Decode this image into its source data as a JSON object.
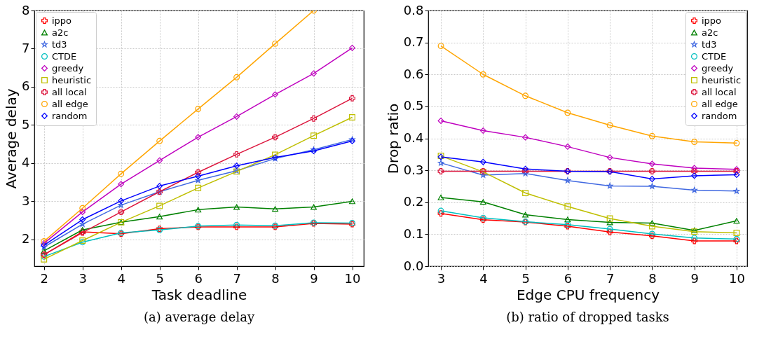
{
  "chart_data": [
    {
      "type": "line",
      "title": "(a) average delay",
      "xlabel": "Task deadline",
      "ylabel": "Average delay",
      "x": [
        2,
        3,
        4,
        5,
        6,
        7,
        8,
        9,
        10
      ],
      "xlim": [
        1.75,
        10.3
      ],
      "xticks": [
        2,
        3,
        4,
        5,
        6,
        7,
        8,
        9,
        10
      ],
      "ylim": [
        1.3,
        8
      ],
      "yticks": [
        2,
        3,
        4,
        5,
        6,
        7,
        8
      ],
      "grid": true,
      "legend": "top left",
      "series": [
        {
          "name": "ippo",
          "color": "#ff0000",
          "marker": "cross",
          "values": [
            1.6,
            2.2,
            2.15,
            2.28,
            2.33,
            2.33,
            2.33,
            2.42,
            2.4
          ]
        },
        {
          "name": "a2c",
          "color": "#008000",
          "marker": "triangle",
          "values": [
            1.7,
            2.25,
            2.45,
            2.6,
            2.78,
            2.85,
            2.8,
            2.85,
            3.0
          ]
        },
        {
          "name": "td3",
          "color": "#4169e1",
          "marker": "star",
          "values": [
            1.8,
            2.4,
            2.9,
            3.25,
            3.55,
            3.8,
            4.12,
            4.35,
            4.62
          ]
        },
        {
          "name": "CTDE",
          "color": "#00bfbf",
          "marker": "circle",
          "values": [
            1.55,
            1.93,
            2.17,
            2.25,
            2.35,
            2.38,
            2.36,
            2.44,
            2.43
          ]
        },
        {
          "name": "greedy",
          "color": "#bf00bf",
          "marker": "diamond",
          "values": [
            1.9,
            2.72,
            3.45,
            4.07,
            4.68,
            5.22,
            5.8,
            6.35,
            7.02
          ]
        },
        {
          "name": "heuristic",
          "color": "#bfbf00",
          "marker": "square",
          "values": [
            1.48,
            1.97,
            2.45,
            2.88,
            3.35,
            3.78,
            4.22,
            4.72,
            5.2
          ]
        },
        {
          "name": "all local",
          "color": "#dc143c",
          "marker": "cross",
          "values": [
            1.6,
            2.18,
            2.72,
            3.25,
            3.76,
            4.23,
            4.68,
            5.17,
            5.7
          ]
        },
        {
          "name": "all edge",
          "color": "#ffa500",
          "marker": "circle",
          "values": [
            1.95,
            2.82,
            3.72,
            4.58,
            5.42,
            6.25,
            7.13,
            8.0,
            null
          ]
        },
        {
          "name": "random",
          "color": "#0000ff",
          "marker": "diamond",
          "values": [
            1.85,
            2.52,
            3.01,
            3.4,
            3.66,
            3.93,
            4.15,
            4.32,
            4.58
          ]
        }
      ]
    },
    {
      "type": "line",
      "title": "(b) ratio of dropped tasks",
      "xlabel": "Edge CPU frequency",
      "ylabel": "Drop ratio",
      "x": [
        3,
        4,
        5,
        6,
        7,
        8,
        9,
        10
      ],
      "xlim": [
        2.7,
        10.25
      ],
      "xticks": [
        3,
        4,
        5,
        6,
        7,
        8,
        9,
        10
      ],
      "ylim": [
        0,
        0.8
      ],
      "yticks": [
        {
          "value": 0,
          "label": "0.0"
        },
        0.1,
        0.2,
        0.3,
        0.4,
        0.5,
        0.6,
        0.7,
        0.8
      ],
      "grid": true,
      "legend": "top right",
      "series": [
        {
          "name": "ippo",
          "color": "#ff0000",
          "marker": "cross",
          "values": [
            0.165,
            0.145,
            0.138,
            0.125,
            0.107,
            0.095,
            0.079,
            0.079
          ]
        },
        {
          "name": "a2c",
          "color": "#008000",
          "marker": "triangle",
          "values": [
            0.215,
            0.201,
            0.161,
            0.146,
            0.137,
            0.135,
            0.112,
            0.142
          ]
        },
        {
          "name": "td3",
          "color": "#4169e1",
          "marker": "star",
          "values": [
            0.323,
            0.285,
            0.29,
            0.268,
            0.251,
            0.25,
            0.238,
            0.235
          ]
        },
        {
          "name": "CTDE",
          "color": "#00bfbf",
          "marker": "circle",
          "values": [
            0.173,
            0.151,
            0.139,
            0.13,
            0.116,
            0.101,
            0.088,
            0.085
          ]
        },
        {
          "name": "greedy",
          "color": "#bf00bf",
          "marker": "diamond",
          "values": [
            0.455,
            0.424,
            0.403,
            0.374,
            0.34,
            0.32,
            0.307,
            0.303
          ]
        },
        {
          "name": "heuristic",
          "color": "#bfbf00",
          "marker": "square",
          "values": [
            0.345,
            0.295,
            0.229,
            0.187,
            0.149,
            0.125,
            0.108,
            0.104
          ]
        },
        {
          "name": "all local",
          "color": "#dc143c",
          "marker": "cross",
          "values": [
            0.297,
            0.297,
            0.297,
            0.297,
            0.297,
            0.297,
            0.297,
            0.297
          ]
        },
        {
          "name": "all edge",
          "color": "#ffa500",
          "marker": "circle",
          "values": [
            0.689,
            0.6,
            0.533,
            0.48,
            0.441,
            0.407,
            0.389,
            0.385
          ]
        },
        {
          "name": "random",
          "color": "#0000ff",
          "marker": "diamond",
          "values": [
            0.342,
            0.326,
            0.304,
            0.297,
            0.296,
            0.273,
            0.283,
            0.286
          ]
        }
      ]
    }
  ]
}
